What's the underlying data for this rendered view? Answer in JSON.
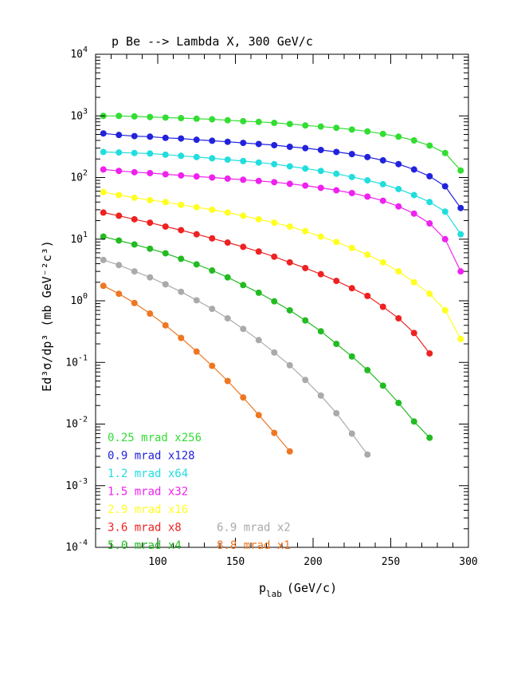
{
  "chart_data": {
    "type": "line",
    "title": "p Be --> Lambda X, 300 GeV/c",
    "xlabel": "p",
    "xlabel_sub": "lab",
    "xlabel_unit": "(GeV/c)",
    "ylabel": "Ed³σ/dp³ (mb GeV⁻²c³)",
    "xlim": [
      60,
      300
    ],
    "ylim": [
      0.0001,
      10000
    ],
    "yscale": "log",
    "grid": false,
    "legend_position": "bottom-left",
    "x_ticks": [
      "100",
      "150",
      "200",
      "250",
      "300"
    ],
    "y_ticks": [
      {
        "base": "10",
        "exp": "-4"
      },
      {
        "base": "10",
        "exp": "-3"
      },
      {
        "base": "10",
        "exp": "-2"
      },
      {
        "base": "10",
        "exp": "-1"
      },
      {
        "base": "10",
        "exp": "0"
      },
      {
        "base": "10",
        "exp": "1"
      },
      {
        "base": "10",
        "exp": "2"
      },
      {
        "base": "10",
        "exp": "3"
      },
      {
        "base": "10",
        "exp": "4"
      }
    ],
    "series": [
      {
        "name": "0.25 mrad x256",
        "color": "#33dd33",
        "x": [
          65,
          75,
          85,
          95,
          105,
          115,
          125,
          135,
          145,
          155,
          165,
          175,
          185,
          195,
          205,
          215,
          225,
          235,
          245,
          255,
          265,
          275,
          285,
          295
        ],
        "y": [
          1000,
          1000,
          980,
          960,
          940,
          920,
          900,
          880,
          850,
          820,
          800,
          770,
          740,
          700,
          670,
          640,
          600,
          560,
          510,
          460,
          400,
          330,
          250,
          130
        ]
      },
      {
        "name": "0.9 mrad x128",
        "color": "#2222dd",
        "x": [
          65,
          75,
          85,
          95,
          105,
          115,
          125,
          135,
          145,
          155,
          165,
          175,
          185,
          195,
          205,
          215,
          225,
          235,
          245,
          255,
          265,
          275,
          285,
          295
        ],
        "y": [
          520,
          490,
          470,
          460,
          440,
          430,
          410,
          395,
          380,
          365,
          350,
          335,
          315,
          300,
          280,
          260,
          240,
          215,
          190,
          165,
          135,
          105,
          72,
          32
        ]
      },
      {
        "name": "1.2 mrad x64",
        "color": "#22dddd",
        "x": [
          65,
          75,
          85,
          95,
          105,
          115,
          125,
          135,
          145,
          155,
          165,
          175,
          185,
          195,
          205,
          215,
          225,
          235,
          245,
          255,
          265,
          275,
          285,
          295
        ],
        "y": [
          260,
          255,
          250,
          245,
          235,
          225,
          215,
          205,
          195,
          185,
          175,
          165,
          152,
          140,
          128,
          115,
          102,
          90,
          78,
          65,
          52,
          40,
          28,
          12
        ]
      },
      {
        "name": "1.5 mrad x32",
        "color": "#ee22ee",
        "x": [
          65,
          75,
          85,
          95,
          105,
          115,
          125,
          135,
          145,
          155,
          165,
          175,
          185,
          195,
          205,
          215,
          225,
          235,
          245,
          255,
          265,
          275,
          285,
          295
        ],
        "y": [
          135,
          128,
          122,
          118,
          113,
          108,
          104,
          100,
          96,
          92,
          88,
          84,
          79,
          74,
          68,
          62,
          56,
          49,
          42,
          34,
          26,
          18,
          10,
          3
        ]
      },
      {
        "name": "2.9 mrad x16",
        "color": "#ffff22",
        "x": [
          65,
          75,
          85,
          95,
          105,
          115,
          125,
          135,
          145,
          155,
          165,
          175,
          185,
          195,
          205,
          215,
          225,
          235,
          245,
          255,
          265,
          275,
          285,
          295
        ],
        "y": [
          58,
          52,
          47,
          43,
          40,
          36,
          33,
          30,
          27,
          24,
          21,
          18.5,
          16,
          13.5,
          11,
          9,
          7.2,
          5.6,
          4.2,
          3.0,
          2.0,
          1.3,
          0.7,
          0.24
        ]
      },
      {
        "name": "3.6 mrad x8",
        "color": "#ee2222",
        "x": [
          65,
          75,
          85,
          95,
          105,
          115,
          125,
          135,
          145,
          155,
          165,
          175,
          185,
          195,
          205,
          215,
          225,
          235,
          245,
          255,
          265,
          275
        ],
        "y": [
          27,
          24,
          21,
          18.5,
          16,
          14,
          12,
          10.3,
          8.8,
          7.5,
          6.3,
          5.2,
          4.2,
          3.4,
          2.7,
          2.1,
          1.6,
          1.2,
          0.8,
          0.52,
          0.3,
          0.14
        ]
      },
      {
        "name": "5.0 mrad x4",
        "color": "#22bb22",
        "x": [
          65,
          75,
          85,
          95,
          105,
          115,
          125,
          135,
          145,
          155,
          165,
          175,
          185,
          195,
          205,
          215,
          225,
          235,
          245,
          255,
          265,
          275
        ],
        "y": [
          11,
          9.5,
          8.2,
          7.0,
          5.9,
          4.8,
          3.9,
          3.1,
          2.4,
          1.8,
          1.35,
          0.98,
          0.7,
          0.48,
          0.32,
          0.2,
          0.125,
          0.075,
          0.042,
          0.022,
          0.011,
          0.006
        ]
      },
      {
        "name": "6.9 mrad x2",
        "color": "#aaaaaa",
        "x": [
          65,
          75,
          85,
          95,
          105,
          115,
          125,
          135,
          145,
          155,
          165,
          175,
          185,
          195,
          205,
          215,
          225,
          235
        ],
        "y": [
          4.6,
          3.8,
          3.0,
          2.4,
          1.85,
          1.4,
          1.02,
          0.74,
          0.52,
          0.35,
          0.23,
          0.145,
          0.09,
          0.052,
          0.029,
          0.015,
          0.007,
          0.0032
        ]
      },
      {
        "name": "8.8 mrad x1",
        "color": "#ee7722",
        "x": [
          65,
          75,
          85,
          95,
          105,
          115,
          125,
          135,
          145,
          155,
          165,
          175,
          185
        ],
        "y": [
          1.75,
          1.3,
          0.92,
          0.62,
          0.4,
          0.25,
          0.15,
          0.088,
          0.05,
          0.027,
          0.014,
          0.0072,
          0.0036
        ]
      }
    ],
    "legend": [
      {
        "label": "0.25 mrad x256",
        "color": "#33dd33"
      },
      {
        "label": "0.9 mrad  x128",
        "color": "#2222dd"
      },
      {
        "label": "1.2 mrad  x64",
        "color": "#22dddd"
      },
      {
        "label": "1.5 mrad  x32",
        "color": "#ee22ee"
      },
      {
        "label": "2.9 mrad  x16",
        "color": "#ffff22"
      },
      {
        "label": "3.6 mrad  x8",
        "color": "#ee2222"
      },
      {
        "label": "5.0 mrad  x4",
        "color": "#22bb22"
      },
      {
        "label": "6.9 mrad x2",
        "color": "#aaaaaa"
      },
      {
        "label": "8.8 mrad x1",
        "color": "#ee7722"
      }
    ]
  }
}
